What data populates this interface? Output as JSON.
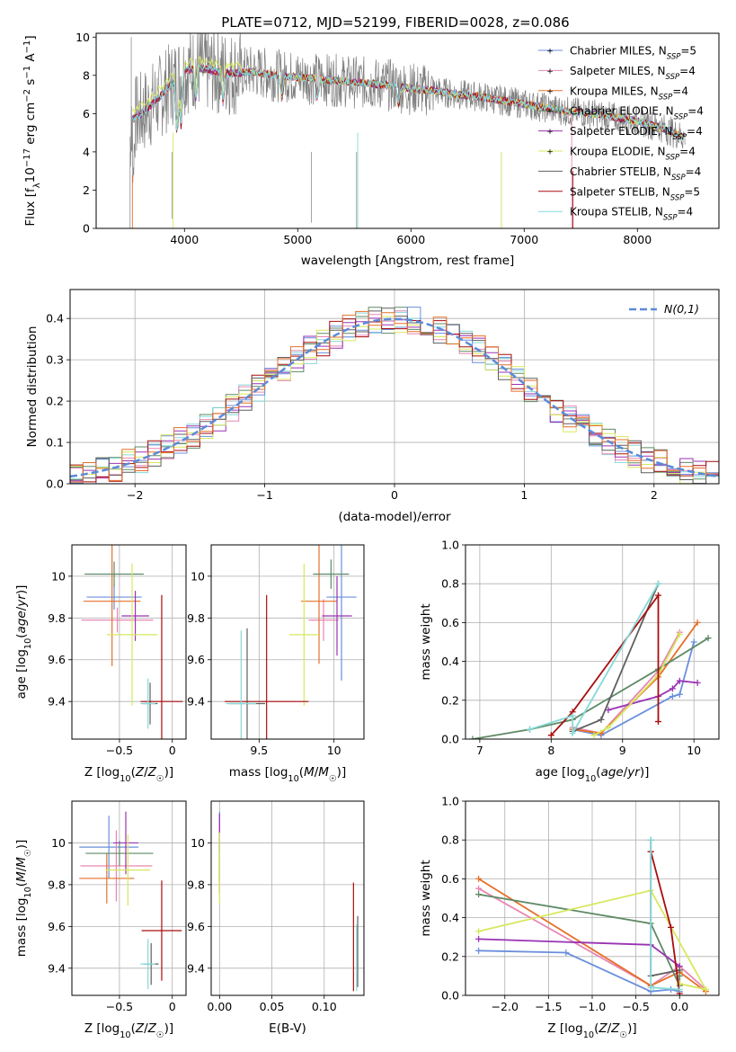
{
  "figure": {
    "title": "PLATE=0712, MJD=52199, FIBERID=0028, z=0.086"
  },
  "colors": {
    "series": [
      "#6a8fdc",
      "#e787b3",
      "#e5702a",
      "#5e8a66",
      "#9a33b4",
      "#d7e85c",
      "#5f5f5f",
      "#a80d0d",
      "#86d8d9"
    ],
    "grid": "#b0b0b0",
    "normal": "#5b8bd9"
  },
  "chart_data": [
    {
      "id": "spectrum",
      "type": "line",
      "title": "PLATE=0712, MJD=52199, FIBERID=0028, z=0.086",
      "xlabel": "wavelength [Angstrom, rest frame]",
      "ylabel": "Flux [f_λ 10^-17 erg cm^-2 s^-1 A^-1]",
      "xlim": [
        3220,
        8720
      ],
      "ylim": [
        0,
        10.2
      ],
      "xticks": [
        4000,
        5000,
        6000,
        7000,
        8000
      ],
      "yticks": [
        0,
        2,
        4,
        6,
        8,
        10
      ],
      "grid": false,
      "legend_position": "top-right",
      "continuum_x": [
        3520,
        3600,
        3700,
        3800,
        3900,
        4000,
        4100,
        4200,
        4400,
        4600,
        4800,
        5000,
        5200,
        5400,
        5600,
        5800,
        6000,
        6200,
        6400,
        6600,
        6800,
        7000,
        7200,
        7400,
        7600,
        7800,
        8000,
        8200,
        8400
      ],
      "continuum_y": [
        5.6,
        5.9,
        6.4,
        7.0,
        7.6,
        8.2,
        8.4,
        8.3,
        8.1,
        8.2,
        8.0,
        7.9,
        7.8,
        7.7,
        7.6,
        7.5,
        7.3,
        7.2,
        7.0,
        6.9,
        6.7,
        6.5,
        6.3,
        6.1,
        6.0,
        5.8,
        5.6,
        5.3,
        4.8
      ],
      "series": [
        {
          "name": "Chabrier MILES, N_SSP=5",
          "label_main": "Chabrier MILES, N",
          "label_sub": "SSP",
          "label_tail": "=5"
        },
        {
          "name": "Salpeter MILES, N_SSP=4",
          "label_main": "Salpeter MILES, N",
          "label_sub": "SSP",
          "label_tail": "=4"
        },
        {
          "name": "Kroupa MILES, N_SSP=4",
          "label_main": "Kroupa MILES, N",
          "label_sub": "SSP",
          "label_tail": "=4"
        },
        {
          "name": "Chabrier ELODIE, N_SSP=4",
          "label_main": "Chabrier ELODIE, N",
          "label_sub": "SSP",
          "label_tail": "=4"
        },
        {
          "name": "Salpeter ELODIE, N_SSP=4",
          "label_main": "Salpeter ELODIE, N",
          "label_sub": "SSP",
          "label_tail": "=4"
        },
        {
          "name": "Kroupa ELODIE, N_SSP=4",
          "label_main": "Kroupa ELODIE, N",
          "label_sub": "SSP",
          "label_tail": "=4"
        },
        {
          "name": "Chabrier STELIB, N_SSP=4",
          "label_main": "Chabrier STELIB, N",
          "label_sub": "SSP",
          "label_tail": "=4"
        },
        {
          "name": "Salpeter STELIB, N_SSP=5",
          "label_main": "Salpeter STELIB, N",
          "label_sub": "SSP",
          "label_tail": "=5"
        },
        {
          "name": "Kroupa STELIB, N_SSP=4",
          "label_main": "Kroupa STELIB, N",
          "label_sub": "SSP",
          "label_tail": "=4"
        }
      ]
    },
    {
      "id": "residuals",
      "type": "line",
      "xlabel": "(data-model)/error",
      "ylabel": "Normed distribution",
      "xlim": [
        -2.5,
        2.5
      ],
      "ylim": [
        0,
        0.47
      ],
      "xticks": [
        -2,
        -1,
        0,
        1,
        2
      ],
      "yticks": [
        0.0,
        0.1,
        0.2,
        0.3,
        0.4
      ],
      "grid": true,
      "legend_position": "top-right",
      "legend": "N(0,1)",
      "bin_width": 0.1
    },
    {
      "id": "age_vs_Z",
      "type": "scatter",
      "xlabel": "Z [log10(Z/Z☉)]",
      "ylabel": "age  [log10(age/yr)]",
      "xlim": [
        -0.95,
        0.13
      ],
      "ylim": [
        9.22,
        10.15
      ],
      "xticks": [
        -0.5,
        0.0
      ],
      "yticks": [
        9.4,
        9.6,
        9.8,
        10.0
      ],
      "grid": true,
      "points": [
        {
          "x": -0.55,
          "y": 9.9,
          "xerr": 0.26,
          "yerr": 0.06
        },
        {
          "x": -0.52,
          "y": 9.79,
          "xerr": 0.34,
          "yerr": 0.06
        },
        {
          "x": -0.57,
          "y": 9.88,
          "xerr": 0.27,
          "yerr": 0.31
        },
        {
          "x": -0.55,
          "y": 10.01,
          "xerr": 0.28,
          "yerr": 0.06
        },
        {
          "x": -0.35,
          "y": 9.81,
          "xerr": 0.13,
          "yerr": 0.12
        },
        {
          "x": -0.38,
          "y": 9.72,
          "xerr": 0.24,
          "yerr": 0.34
        },
        {
          "x": -0.21,
          "y": 9.39,
          "xerr": 0.07,
          "yerr": 0.1
        },
        {
          "x": -0.1,
          "y": 9.4,
          "xerr": 0.2,
          "yerr": 0.51
        },
        {
          "x": -0.23,
          "y": 9.39,
          "xerr": 0.07,
          "yerr": 0.12
        }
      ]
    },
    {
      "id": "age_vs_mass",
      "type": "scatter",
      "xlabel": "mass [log10(M/M☉)]",
      "ylabel": "",
      "xlim": [
        9.18,
        10.2
      ],
      "ylim": [
        9.22,
        10.15
      ],
      "xticks": [
        9.5,
        10.0
      ],
      "yticks": [
        9.4,
        9.6,
        9.8,
        10.0
      ],
      "grid": true,
      "points": [
        {
          "x": 10.05,
          "y": 9.9,
          "xerr": 0.1,
          "yerr": 0.4
        },
        {
          "x": 9.93,
          "y": 9.79,
          "xerr": 0.1,
          "yerr": 0.1
        },
        {
          "x": 9.9,
          "y": 9.88,
          "xerr": 0.12,
          "yerr": 0.3
        },
        {
          "x": 9.98,
          "y": 10.01,
          "xerr": 0.12,
          "yerr": 0.07
        },
        {
          "x": 10.02,
          "y": 9.81,
          "xerr": 0.1,
          "yerr": 0.19
        },
        {
          "x": 9.8,
          "y": 9.72,
          "xerr": 0.1,
          "yerr": 0.34
        },
        {
          "x": 9.42,
          "y": 9.39,
          "xerr": 0.12,
          "yerr": 0.36
        },
        {
          "x": 9.55,
          "y": 9.4,
          "xerr": 0.28,
          "yerr": 0.51
        },
        {
          "x": 9.38,
          "y": 9.39,
          "xerr": 0.1,
          "yerr": 0.35
        }
      ]
    },
    {
      "id": "mass_weight_vs_age",
      "type": "line",
      "xlabel": "age  [log10(age/yr)]",
      "ylabel": "mass weight",
      "xlim": [
        6.8,
        10.35
      ],
      "ylim": [
        0,
        1.0
      ],
      "xticks": [
        7,
        8,
        9,
        10
      ],
      "yticks": [
        0.0,
        0.2,
        0.4,
        0.6,
        0.8,
        1.0
      ],
      "grid": true,
      "series": [
        {
          "x": [
            8.3,
            8.7,
            9.7,
            9.8,
            10.0
          ],
          "y": [
            0.05,
            0.02,
            0.22,
            0.23,
            0.5
          ]
        },
        {
          "x": [
            8.3,
            8.7,
            9.5,
            9.8
          ],
          "y": [
            0.06,
            0.03,
            0.35,
            0.55
          ]
        },
        {
          "x": [
            8.3,
            8.7,
            9.5,
            10.05
          ],
          "y": [
            0.05,
            0.03,
            0.32,
            0.6
          ]
        },
        {
          "x": [
            6.9,
            7.7,
            8.3,
            9.5,
            10.2
          ],
          "y": [
            0.0,
            0.05,
            0.1,
            0.36,
            0.52
          ]
        },
        {
          "x": [
            8.8,
            9.5,
            9.7,
            9.8,
            10.05
          ],
          "y": [
            0.15,
            0.22,
            0.26,
            0.3,
            0.29
          ]
        },
        {
          "x": [
            8.6,
            8.8,
            9.5,
            9.8
          ],
          "y": [
            0.02,
            0.06,
            0.33,
            0.54
          ]
        },
        {
          "x": [
            8.3,
            8.7,
            9.5
          ],
          "y": [
            0.04,
            0.1,
            0.8
          ]
        },
        {
          "x": [
            8.0,
            8.3,
            9.5,
            9.5
          ],
          "y": [
            0.02,
            0.14,
            0.74,
            0.09
          ]
        },
        {
          "x": [
            7.7,
            8.3,
            8.3,
            9.5
          ],
          "y": [
            0.05,
            0.12,
            0.03,
            0.8
          ]
        }
      ]
    },
    {
      "id": "mass_vs_Z",
      "type": "scatter",
      "xlabel": "Z [log10(Z/Z☉)]",
      "ylabel": "mass [log10(M/M☉)]",
      "xlim": [
        -0.95,
        0.13
      ],
      "ylim": [
        9.27,
        10.2
      ],
      "xticks": [
        -0.5,
        0.0
      ],
      "yticks": [
        9.4,
        9.6,
        9.8,
        10.0
      ],
      "grid": true,
      "points": [
        {
          "x": -0.6,
          "y": 9.98,
          "xerr": 0.28,
          "yerr": 0.15
        },
        {
          "x": -0.53,
          "y": 9.89,
          "xerr": 0.34,
          "yerr": 0.17
        },
        {
          "x": -0.62,
          "y": 9.83,
          "xerr": 0.26,
          "yerr": 0.12
        },
        {
          "x": -0.5,
          "y": 9.95,
          "xerr": 0.32,
          "yerr": 0.06
        },
        {
          "x": -0.44,
          "y": 10.0,
          "xerr": 0.12,
          "yerr": 0.15
        },
        {
          "x": -0.42,
          "y": 9.87,
          "xerr": 0.21,
          "yerr": 0.17
        },
        {
          "x": -0.2,
          "y": 9.42,
          "xerr": 0.07,
          "yerr": 0.1
        },
        {
          "x": -0.1,
          "y": 9.58,
          "xerr": 0.19,
          "yerr": 0.24
        },
        {
          "x": -0.23,
          "y": 9.42,
          "xerr": 0.07,
          "yerr": 0.12
        }
      ]
    },
    {
      "id": "mass_vs_EBV",
      "type": "scatter",
      "xlabel": "E(B-V)",
      "ylabel": "",
      "xlim": [
        -0.008,
        0.138
      ],
      "ylim": [
        9.27,
        10.2
      ],
      "xticks": [
        0.0,
        0.05,
        0.1
      ],
      "xtick_labels": [
        "0.00",
        "0.05",
        "0.10"
      ],
      "yticks": [
        9.4,
        9.6,
        9.8,
        10.0
      ],
      "grid": true,
      "points": [
        {
          "x": 0.0,
          "y": 10.05,
          "yerr": 0.1
        },
        {
          "x": 0.0,
          "y": 9.95,
          "yerr": 0.14
        },
        {
          "x": 0.0,
          "y": 9.88,
          "yerr": 0.12
        },
        {
          "x": 0.0,
          "y": 9.92,
          "yerr": 0.1
        },
        {
          "x": 0.0,
          "y": 10.05,
          "yerr": 0.09
        },
        {
          "x": 0.0,
          "y": 9.88,
          "yerr": 0.17
        },
        {
          "x": 0.132,
          "y": 9.48,
          "yerr": 0.17
        },
        {
          "x": 0.128,
          "y": 9.55,
          "yerr": 0.26
        },
        {
          "x": 0.131,
          "y": 9.45,
          "yerr": 0.16
        }
      ]
    },
    {
      "id": "mass_weight_vs_Z",
      "type": "line",
      "xlabel": "Z [log10(Z/Z☉)]",
      "ylabel": "mass weight",
      "xlim": [
        -2.45,
        0.45
      ],
      "ylim": [
        0,
        1.0
      ],
      "xticks": [
        -2.0,
        -1.5,
        -1.0,
        -0.5,
        0.0
      ],
      "xtick_labels": [
        "−2.0",
        "−1.5",
        "−1.0",
        "−0.5",
        "0.0"
      ],
      "yticks": [
        0.0,
        0.2,
        0.4,
        0.6,
        0.8,
        1.0
      ],
      "grid": true,
      "series": [
        {
          "x": [
            -2.3,
            -1.3,
            -0.33,
            -0.1,
            0.0
          ],
          "y": [
            0.23,
            0.22,
            0.02,
            0.03,
            0.02
          ]
        },
        {
          "x": [
            -2.3,
            -0.33,
            0.0,
            0.3
          ],
          "y": [
            0.55,
            0.05,
            0.15,
            0.03
          ]
        },
        {
          "x": [
            -2.3,
            -0.33,
            0.0,
            0.3
          ],
          "y": [
            0.6,
            0.05,
            0.12,
            0.02
          ]
        },
        {
          "x": [
            -2.3,
            -0.33,
            0.0,
            0.0
          ],
          "y": [
            0.52,
            0.37,
            0.05,
            0.1
          ]
        },
        {
          "x": [
            -2.3,
            -0.33,
            0.0
          ],
          "y": [
            0.29,
            0.26,
            0.15
          ]
        },
        {
          "x": [
            -2.3,
            -0.33,
            0.3,
            0.0
          ],
          "y": [
            0.33,
            0.54,
            0.03,
            0.06
          ]
        },
        {
          "x": [
            -0.33,
            -0.33,
            0.0
          ],
          "y": [
            0.8,
            0.1,
            0.13
          ]
        },
        {
          "x": [
            -0.33,
            -0.33,
            -0.1,
            0.0
          ],
          "y": [
            0.74,
            0.74,
            0.35,
            0.01
          ]
        },
        {
          "x": [
            -0.33,
            -0.33,
            -0.3,
            0.0
          ],
          "y": [
            0.8,
            0.04,
            0.04,
            0.03
          ]
        }
      ]
    }
  ]
}
